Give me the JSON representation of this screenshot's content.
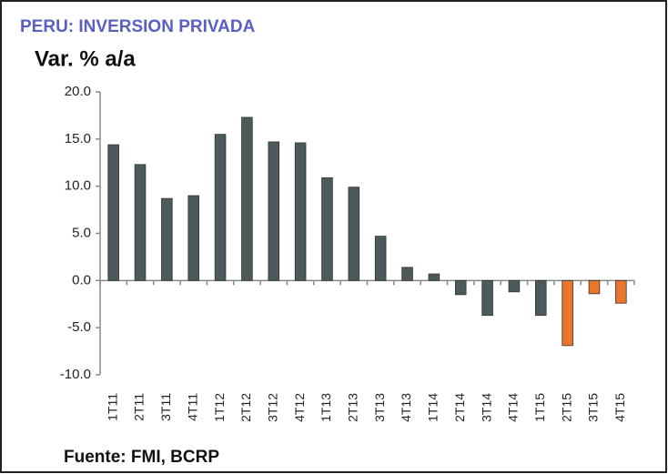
{
  "chart_data": {
    "type": "bar",
    "title": "PERU: INVERSION PRIVADA",
    "subtitle": "Var. % a/a",
    "source": "Fuente: FMI, BCRP",
    "categories": [
      "1T11",
      "2T11",
      "3T11",
      "4T11",
      "1T12",
      "2T12",
      "3T12",
      "4T12",
      "1T13",
      "2T13",
      "3T13",
      "4T13",
      "1T14",
      "2T14",
      "3T14",
      "4T14",
      "1T15",
      "2T15",
      "3T15",
      "4T15"
    ],
    "values": [
      14.4,
      12.3,
      8.7,
      9.0,
      15.5,
      17.3,
      14.7,
      14.6,
      10.9,
      9.9,
      4.7,
      1.4,
      0.7,
      -1.5,
      -3.7,
      -1.2,
      -3.7,
      -6.9,
      -1.4,
      -2.4
    ],
    "colors": [
      "#4b5b5b",
      "#4b5b5b",
      "#4b5b5b",
      "#4b5b5b",
      "#4b5b5b",
      "#4b5b5b",
      "#4b5b5b",
      "#4b5b5b",
      "#4b5b5b",
      "#4b5b5b",
      "#4b5b5b",
      "#4b5b5b",
      "#4b5b5b",
      "#4b5b5b",
      "#4b5b5b",
      "#4b5b5b",
      "#4b5b5b",
      "#e8762b",
      "#e8762b",
      "#e8762b"
    ],
    "ylim": [
      -10,
      20
    ],
    "yticks": [
      {
        "value": -10,
        "label": "-10.0"
      },
      {
        "value": -5,
        "label": "-5.0"
      },
      {
        "value": 0,
        "label": "0.0"
      },
      {
        "value": 5,
        "label": "5.0"
      },
      {
        "value": 10,
        "label": "10.0"
      },
      {
        "value": 15,
        "label": "15.0"
      },
      {
        "value": 20,
        "label": "20.0"
      }
    ],
    "grid": false
  }
}
